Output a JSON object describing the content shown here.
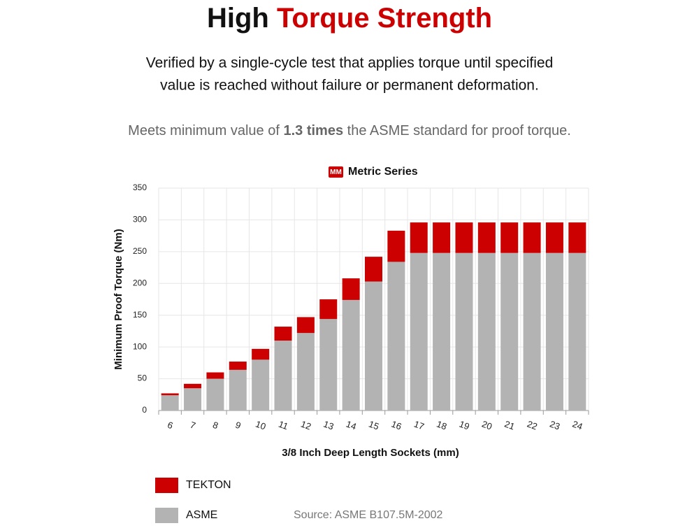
{
  "chart_data": {
    "type": "bar",
    "stacked": true,
    "title_part1": "High",
    "title_part2": "Torque Strength",
    "subtitle_line1": "Verified by a single-cycle test that applies torque until specified",
    "subtitle_line2": "value is reached without failure or permanent deformation.",
    "note_part1": "Meets minimum value of",
    "note_part2": "1.3 times",
    "note_part3": "the ASME standard for proof torque.",
    "badge": "MM",
    "chart_title": "Metric Series",
    "ylabel": "Minimum Proof Torque (Nm)",
    "xlabel": "3/8 Inch Deep Length Sockets (mm)",
    "source": "Source: ASME B107.5M-2002",
    "categories": [
      "6",
      "7",
      "8",
      "9",
      "10",
      "11",
      "12",
      "13",
      "14",
      "15",
      "16",
      "17",
      "18",
      "19",
      "20",
      "21",
      "22",
      "23",
      "24"
    ],
    "series": [
      {
        "name": "ASME",
        "color": "#b3b3b3",
        "values": [
          24,
          35,
          50,
          64,
          80,
          110,
          122,
          144,
          174,
          203,
          234,
          248,
          248,
          248,
          248,
          248,
          248,
          248,
          248
        ]
      },
      {
        "name": "TEKTON",
        "color": "#cc0000",
        "values": [
          3,
          7,
          10,
          13,
          17,
          22,
          25,
          31,
          34,
          39,
          49,
          48,
          48,
          48,
          48,
          48,
          48,
          48,
          48
        ]
      }
    ],
    "ylim": [
      0,
      350
    ],
    "yticks": [
      0,
      50,
      100,
      150,
      200,
      250,
      300,
      350
    ],
    "grid": true
  }
}
